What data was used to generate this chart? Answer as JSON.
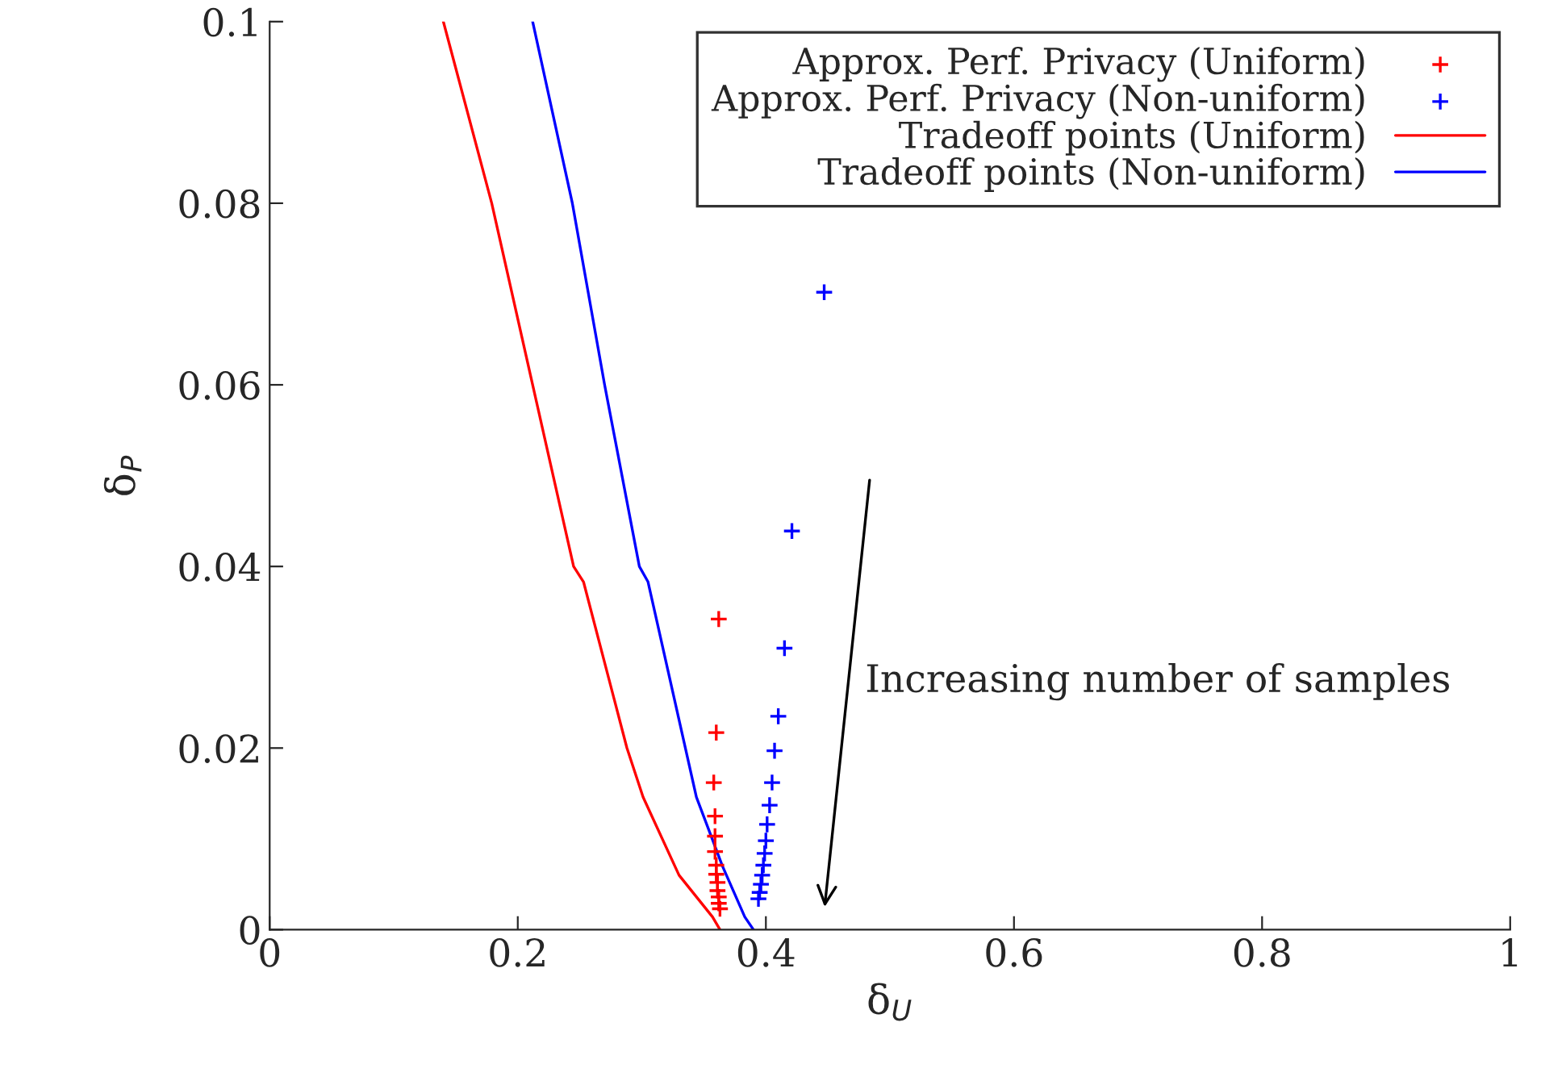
{
  "chart_data": {
    "type": "scatter",
    "xlabel": "δ$_{U}$",
    "ylabel": "δ$_{P}$",
    "xlim": [
      0,
      1
    ],
    "ylim": [
      0,
      0.1
    ],
    "xticks": [
      0,
      0.2,
      0.4,
      0.6,
      0.8,
      1
    ],
    "yticks": [
      0,
      0.02,
      0.04,
      0.06,
      0.08,
      0.1
    ],
    "grid": false,
    "legend": "top right",
    "series": [
      {
        "name": "Approx. Perf. Privacy (Uniform)",
        "marker": "cross",
        "color": "#ff0000",
        "x": [
          0.362,
          0.36,
          0.358,
          0.359,
          0.359,
          0.359,
          0.36,
          0.36,
          0.361,
          0.361,
          0.362,
          0.362,
          0.363
        ],
        "values": [
          0.0342,
          0.0217,
          0.0162,
          0.0125,
          0.0103,
          0.0086,
          0.0071,
          0.0061,
          0.0052,
          0.0043,
          0.0036,
          0.0029,
          0.0023
        ]
      },
      {
        "name": "Approx. Perf. Privacy (Non-uniform)",
        "marker": "cross",
        "color": "#0000ff",
        "x": [
          0.447,
          0.421,
          0.415,
          0.41,
          0.407,
          0.405,
          0.403,
          0.401,
          0.4,
          0.399,
          0.398,
          0.397,
          0.396,
          0.395,
          0.394
        ],
        "values": [
          0.0702,
          0.0439,
          0.031,
          0.0235,
          0.0197,
          0.0162,
          0.0137,
          0.0116,
          0.0098,
          0.0084,
          0.0071,
          0.006,
          0.005,
          0.0041,
          0.0034
        ]
      },
      {
        "name": "Tradeoff points (Uniform)",
        "type": "line",
        "color": "#ff0000",
        "x": [
          0.14,
          0.179,
          0.212,
          0.245,
          0.253,
          0.288,
          0.301,
          0.33,
          0.357,
          0.363
        ],
        "values": [
          0.1,
          0.08,
          0.06,
          0.04,
          0.0383,
          0.02,
          0.0146,
          0.006,
          0.0014,
          0
        ]
      },
      {
        "name": "Tradeoff points (Non-uniform)",
        "type": "line",
        "color": "#0000ff",
        "x": [
          0.212,
          0.244,
          0.27,
          0.298,
          0.305,
          0.344,
          0.365,
          0.383,
          0.39
        ],
        "values": [
          0.1,
          0.08,
          0.06,
          0.04,
          0.0383,
          0.0146,
          0.007,
          0.0014,
          0
        ]
      }
    ],
    "annotations": [
      "Increasing number of samples"
    ]
  }
}
